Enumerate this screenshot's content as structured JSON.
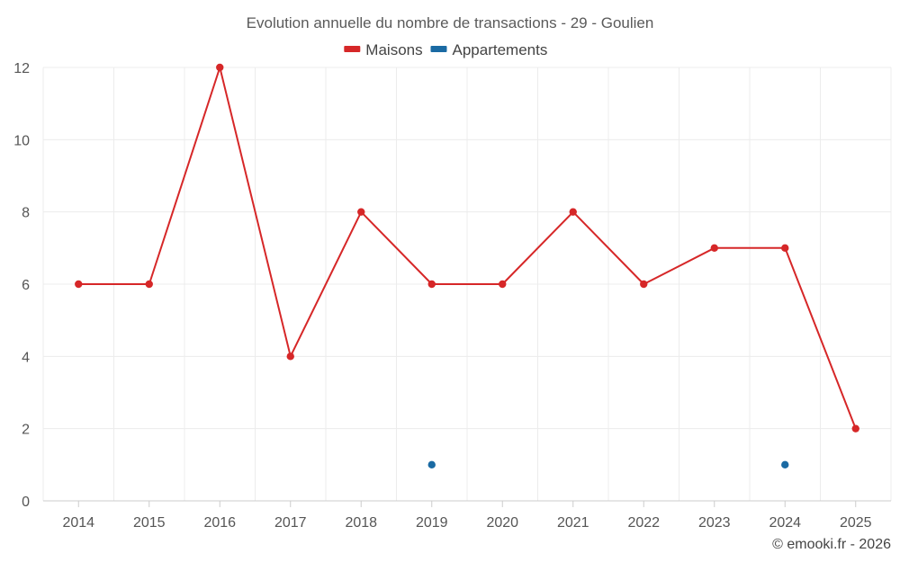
{
  "chart_data": {
    "type": "line",
    "title": "Evolution annuelle du nombre de transactions - 29 - Goulien",
    "categories": [
      "2014",
      "2015",
      "2016",
      "2017",
      "2018",
      "2019",
      "2020",
      "2021",
      "2022",
      "2023",
      "2024",
      "2025"
    ],
    "series": [
      {
        "name": "Maisons",
        "color": "#d62728",
        "values": [
          6,
          6,
          12,
          4,
          8,
          6,
          6,
          8,
          6,
          7,
          7,
          2
        ],
        "line": true
      },
      {
        "name": "Appartements",
        "color": "#1a6aa3",
        "values": [
          null,
          null,
          null,
          null,
          null,
          1,
          null,
          null,
          null,
          null,
          1,
          null
        ],
        "line": false
      }
    ],
    "yticks": [
      0,
      2,
      4,
      6,
      8,
      10,
      12
    ],
    "ylim": [
      0,
      12
    ],
    "xlabel": "",
    "ylabel": "",
    "grid": true,
    "legend_position": "top-center"
  },
  "credit": "© emooki.fr - 2026"
}
